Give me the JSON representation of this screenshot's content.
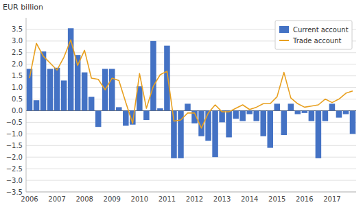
{
  "chart_data": {
    "type": "bar",
    "y_label": "EUR billion",
    "categories": [
      "2006",
      null,
      null,
      null,
      "2007",
      null,
      null,
      null,
      "2008",
      null,
      null,
      null,
      "2009",
      null,
      null,
      null,
      "2010",
      null,
      null,
      null,
      "2011",
      null,
      null,
      null,
      "2012",
      null,
      null,
      null,
      "2013",
      null,
      null,
      null,
      "2014",
      null,
      null,
      null,
      "2015",
      null,
      null,
      null,
      "2016",
      null,
      null,
      null,
      "2017",
      null,
      null,
      null
    ],
    "series": [
      {
        "name": "Current account",
        "type": "bar",
        "color": "#4472C4",
        "values": [
          1.8,
          0.45,
          2.55,
          1.8,
          1.85,
          1.3,
          3.55,
          2.4,
          1.65,
          0.6,
          -0.7,
          1.8,
          1.8,
          0.15,
          -0.65,
          -0.6,
          1.05,
          -0.4,
          3.0,
          0.1,
          2.8,
          -2.05,
          -2.05,
          0.3,
          -0.55,
          -1.1,
          -1.3,
          -2.0,
          -0.5,
          -1.15,
          -0.35,
          -0.45,
          -0.15,
          -0.45,
          -1.1,
          -1.6,
          0.3,
          -1.05,
          0.3,
          -0.15,
          -0.1,
          -0.45,
          -2.05,
          -0.45,
          0.3,
          -0.3,
          -0.15,
          -1.0
        ]
      },
      {
        "name": "Trade account",
        "type": "line",
        "color": "#E8A020",
        "values": [
          1.4,
          2.9,
          2.35,
          2.05,
          1.75,
          2.3,
          3.05,
          1.95,
          2.6,
          1.4,
          1.35,
          0.9,
          1.4,
          1.3,
          0.35,
          -0.55,
          1.6,
          0.1,
          1.05,
          1.55,
          1.7,
          -0.45,
          -0.4,
          -0.1,
          -0.1,
          -0.75,
          -0.1,
          0.25,
          -0.05,
          -0.05,
          0.1,
          0.25,
          0.05,
          0.15,
          0.3,
          0.3,
          0.6,
          1.65,
          0.55,
          0.3,
          0.15,
          0.2,
          0.25,
          0.5,
          0.35,
          0.5,
          0.75,
          0.85
        ]
      }
    ],
    "ylim": [
      -3.5,
      4.0
    ],
    "yticks": [
      {
        "value": -3.5,
        "label": "−3.5"
      },
      {
        "value": -3.0,
        "label": "−3.0"
      },
      {
        "value": -2.5,
        "label": "−2.5"
      },
      {
        "value": -2.0,
        "label": "−2.0"
      },
      {
        "value": -1.5,
        "label": "−1.5"
      },
      {
        "value": -1.0,
        "label": "−1.0"
      },
      {
        "value": -0.5,
        "label": "−0.5"
      },
      {
        "value": 0.0,
        "label": "0.0"
      },
      0.5,
      {
        "value": 1.0,
        "label": "1.0"
      },
      1.5,
      {
        "value": 2.0,
        "label": "2.0"
      },
      2.5,
      {
        "value": 3.0,
        "label": "3.0"
      },
      3.5
    ],
    "grid": true,
    "legend": "top-right"
  }
}
